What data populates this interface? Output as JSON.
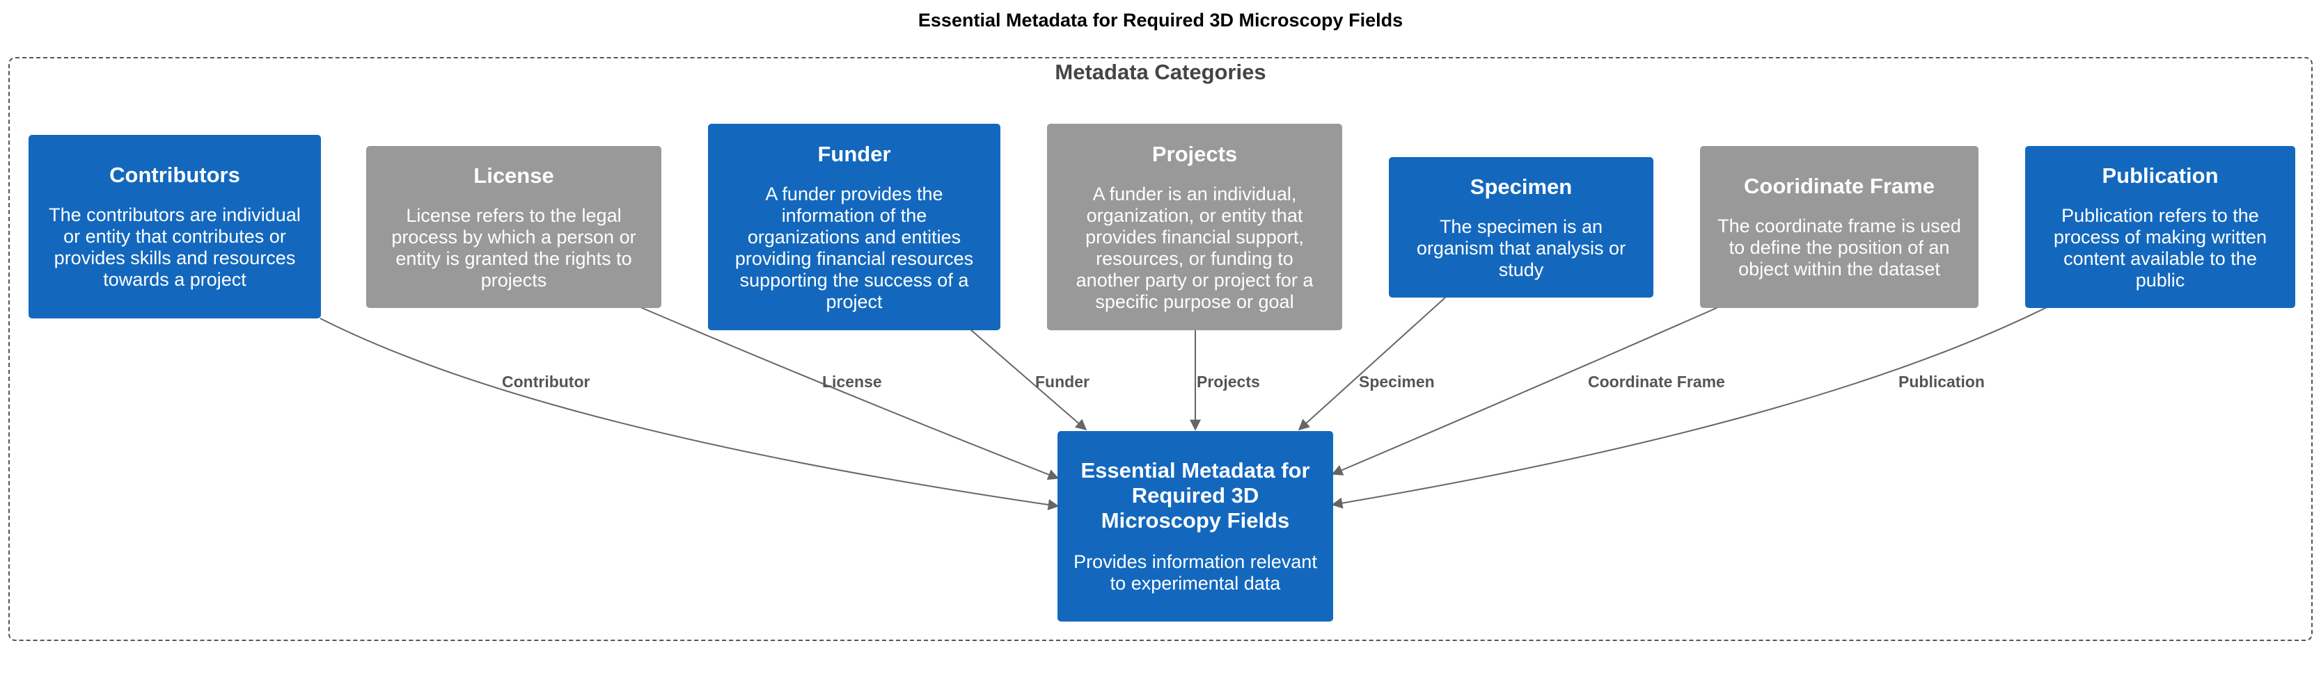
{
  "title": "Essential Metadata for Required 3D Microscopy Fields",
  "boundary_label": "Metadata Categories",
  "target": {
    "title": "Essential Metadata for Required 3D Microscopy Fields",
    "description": "Provides information relevant to experimental data"
  },
  "categories": [
    {
      "title": "Contributors",
      "description": "The contributors are individual or entity that contributes or provides skills and resources towards a project",
      "edge_label": "Contributor",
      "color": "#1368bd"
    },
    {
      "title": "License",
      "description": "License refers to the legal process by which a person or entity is granted the rights to projects",
      "edge_label": "License",
      "color": "#999999"
    },
    {
      "title": "Funder",
      "description": "A funder provides the information of the organizations and entities providing financial resources supporting the success of a project",
      "edge_label": "Funder",
      "color": "#1368bd"
    },
    {
      "title": "Projects",
      "description": "A funder is an individual, organization, or entity that provides financial support, resources, or funding to another party or project for a specific purpose or goal",
      "edge_label": "Projects",
      "color": "#999999"
    },
    {
      "title": "Specimen",
      "description": "The specimen is an organism that analysis or study",
      "edge_label": "Specimen",
      "color": "#1368bd"
    },
    {
      "title": "Cooridinate Frame",
      "description": "The coordinate frame is used to define the position of an object within the dataset",
      "edge_label": "Coordinate Frame",
      "color": "#999999"
    },
    {
      "title": "Publication",
      "description": "Publication refers to the process of making written content available to the public",
      "edge_label": "Publication",
      "color": "#1368bd"
    }
  ],
  "colors": {
    "primary": "#1368bd",
    "secondary": "#999999",
    "edge": "#666666"
  }
}
